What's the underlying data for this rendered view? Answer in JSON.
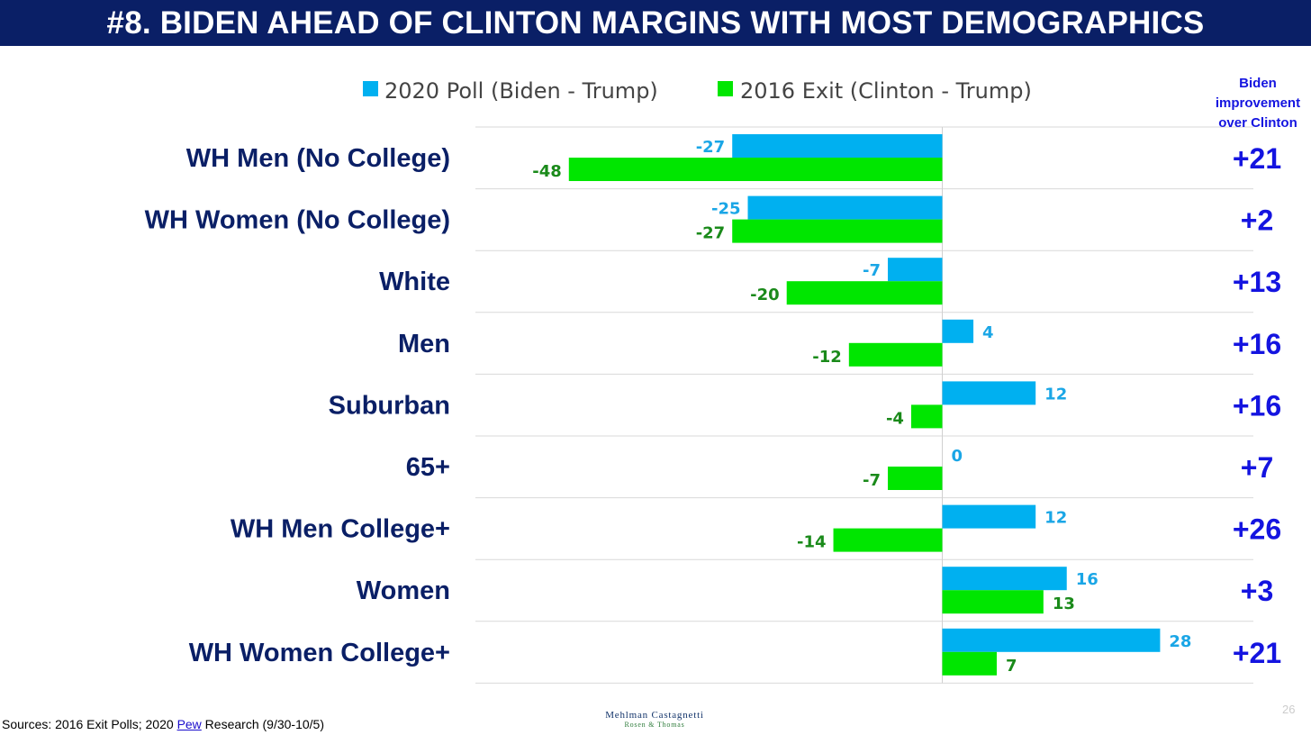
{
  "slide": {
    "title": "#8. BIDEN AHEAD OF CLINTON MARGINS WITH MOST DEMOGRAPHICS",
    "page_number": "26"
  },
  "improvement_header": "Biden\nimprovement\nover Clinton",
  "footer": {
    "sources_prefix": "Sources: 2016 Exit Polls; 2020 ",
    "sources_link": "Pew",
    "sources_suffix": " Research (9/30-10/5)",
    "logo_line1": "Mehlman Castagnetti",
    "logo_line2": "Rosen & Thomas"
  },
  "colors": {
    "title_bar": "#0a1f66",
    "series_2020": "#00b0f0",
    "series_2016": "#00e600",
    "label_2020": "#1aa6e6",
    "label_2016": "#1a8a1a",
    "improvement": "#1414e0",
    "category": "#0a1f66"
  },
  "chart_data": {
    "type": "bar",
    "orientation": "horizontal",
    "categories": [
      "WH Men (No College)",
      "WH Women (No College)",
      "White",
      "Men",
      "Suburban",
      "65+",
      "WH Men College+",
      "Women",
      "WH Women College+"
    ],
    "series": [
      {
        "name": "2020 Poll (Biden - Trump)",
        "values": [
          -27,
          -25,
          -7,
          4,
          12,
          0,
          12,
          16,
          28
        ]
      },
      {
        "name": "2016 Exit (Clinton - Trump)",
        "values": [
          -48,
          -27,
          -20,
          -12,
          -4,
          -7,
          -14,
          13,
          7
        ]
      }
    ],
    "improvement": [
      "+21",
      "+2",
      "+13",
      "+16",
      "+16",
      "+7",
      "+26",
      "+3",
      "+21"
    ],
    "xlim": [
      -48,
      40
    ],
    "legend_position": "top",
    "grid": "horizontal separators",
    "title": "#8. BIDEN AHEAD OF CLINTON MARGINS WITH MOST DEMOGRAPHICS"
  }
}
